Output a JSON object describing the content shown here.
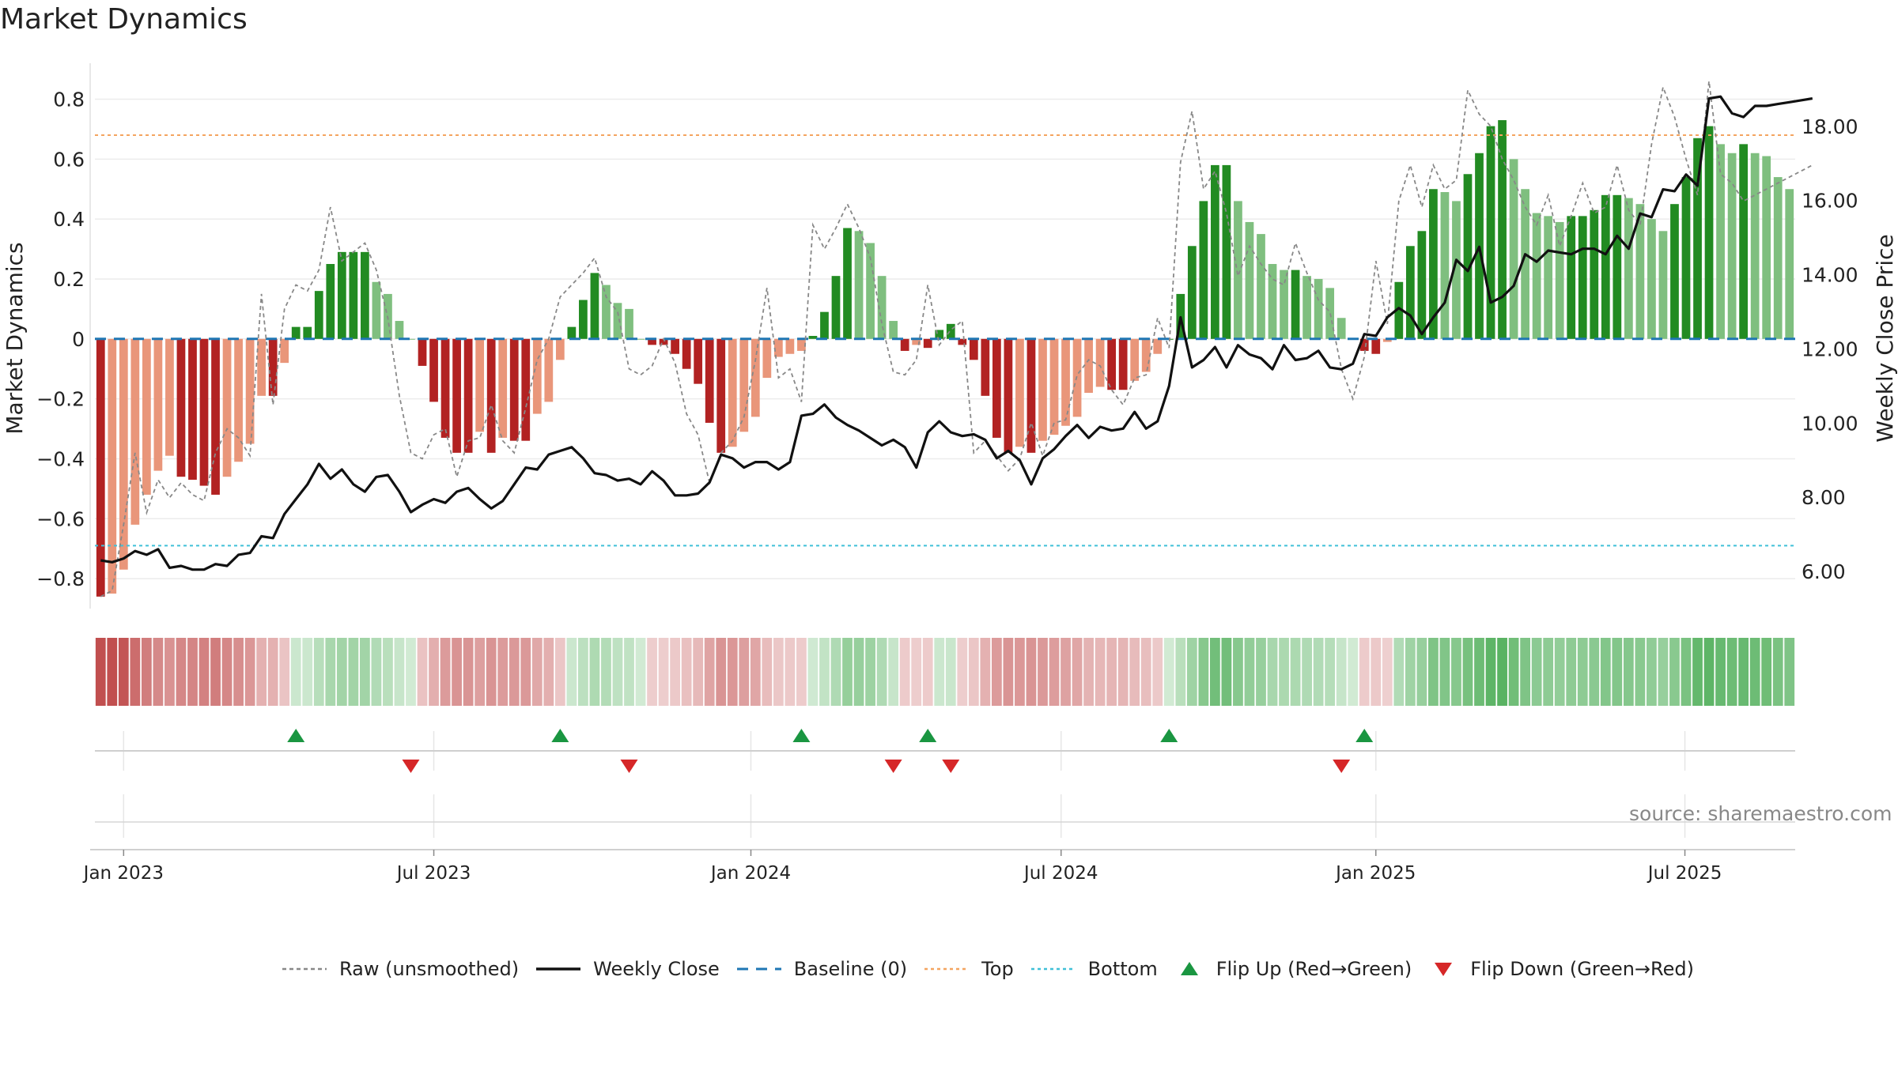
{
  "title": "Market Dynamics",
  "source": "source: sharemaestro.com",
  "legend": {
    "raw": "Raw (unsmoothed)",
    "close": "Weekly Close",
    "baseline": "Baseline (0)",
    "top": "Top",
    "bottom": "Bottom",
    "flip_up": "Flip Up (Red→Green)",
    "flip_down": "Flip Down (Green→Red)"
  },
  "colors": {
    "strong_green": "#228B22",
    "light_green": "#7FBF7F",
    "strong_red": "#B22222",
    "light_red": "#E9967A",
    "raw": "#888888",
    "close": "#111111",
    "baseline": "#1f77b4",
    "top": "#F4A460",
    "bottom": "#40C0D8",
    "flip_up": "#1a9641",
    "flip_down": "#d62728"
  },
  "chart_data": {
    "type": "bar",
    "title": "Market Dynamics",
    "y_left": {
      "label": "Market Dynamics",
      "ylim": [
        -0.9,
        0.92
      ],
      "ticks": [
        -0.8,
        -0.6,
        -0.4,
        -0.2,
        0,
        0.2,
        0.4,
        0.6,
        0.8
      ],
      "tick_labels": [
        "−0.8",
        "−0.6",
        "−0.4",
        "−0.2",
        "0",
        "0.2",
        "0.4",
        "0.6",
        "0.8"
      ]
    },
    "y_right": {
      "label": "Weekly Close Price",
      "ylim": [
        5.0,
        19.7
      ],
      "ticks": [
        6,
        8,
        10,
        12,
        14,
        16,
        18
      ],
      "tick_labels": [
        "6.00",
        "8.00",
        "10.00",
        "12.00",
        "14.00",
        "16.00",
        "18.00"
      ]
    },
    "x": {
      "start": "2022-12-19",
      "week_count": 150,
      "tick_labels": [
        "Jan 2023",
        "Jul 2023",
        "Jan 2024",
        "Jul 2024",
        "Jan 2025",
        "Jul 2025"
      ],
      "tick_weeks": [
        2,
        29,
        56.6,
        83.6,
        111,
        137.9
      ]
    },
    "top_level": 0.68,
    "bottom_level": -0.69,
    "baseline": 0,
    "series": [
      {
        "name": "Market Dynamics",
        "values": [
          -0.86,
          -0.85,
          -0.77,
          -0.62,
          -0.52,
          -0.44,
          -0.39,
          -0.46,
          -0.47,
          -0.49,
          -0.52,
          -0.46,
          -0.41,
          -0.35,
          -0.19,
          -0.19,
          -0.08,
          0.04,
          0.04,
          0.16,
          0.25,
          0.29,
          0.29,
          0.29,
          0.19,
          0.15,
          0.06,
          0.0,
          -0.09,
          -0.21,
          -0.33,
          -0.38,
          -0.38,
          -0.31,
          -0.38,
          -0.33,
          -0.34,
          -0.34,
          -0.25,
          -0.21,
          -0.07,
          0.04,
          0.13,
          0.22,
          0.18,
          0.12,
          0.1,
          0.0,
          -0.02,
          -0.02,
          -0.05,
          -0.1,
          -0.15,
          -0.28,
          -0.38,
          -0.36,
          -0.31,
          -0.26,
          -0.13,
          -0.06,
          -0.05,
          -0.04,
          0.01,
          0.09,
          0.21,
          0.37,
          0.36,
          0.32,
          0.21,
          0.06,
          -0.04,
          -0.02,
          -0.03,
          0.03,
          0.05,
          -0.02,
          -0.07,
          -0.19,
          -0.33,
          -0.38,
          -0.36,
          -0.38,
          -0.34,
          -0.32,
          -0.29,
          -0.26,
          -0.18,
          -0.16,
          -0.17,
          -0.17,
          -0.14,
          -0.11,
          -0.05,
          0.0,
          0.15,
          0.31,
          0.46,
          0.58,
          0.58,
          0.46,
          0.39,
          0.35,
          0.25,
          0.23,
          0.23,
          0.21,
          0.2,
          0.17,
          0.07,
          0.0,
          -0.04,
          -0.05,
          -0.01,
          0.19,
          0.31,
          0.36,
          0.5,
          0.49,
          0.46,
          0.55,
          0.62,
          0.71,
          0.73,
          0.6,
          0.5,
          0.42,
          0.41,
          0.39,
          0.41,
          0.41,
          0.43,
          0.48,
          0.48,
          0.47,
          0.45,
          0.4,
          0.36,
          0.45,
          0.54,
          0.67,
          0.71,
          0.65,
          0.62,
          0.65,
          0.62,
          0.61,
          0.54,
          0.5
        ]
      },
      {
        "name": "Raw (unsmoothed)",
        "values": [
          -0.86,
          -0.84,
          -0.62,
          -0.38,
          -0.58,
          -0.47,
          -0.53,
          -0.48,
          -0.52,
          -0.54,
          -0.38,
          -0.3,
          -0.33,
          -0.39,
          0.15,
          -0.22,
          0.1,
          0.18,
          0.16,
          0.23,
          0.44,
          0.26,
          0.29,
          0.32,
          0.23,
          0.07,
          -0.19,
          -0.38,
          -0.4,
          -0.32,
          -0.3,
          -0.46,
          -0.34,
          -0.33,
          -0.22,
          -0.34,
          -0.38,
          -0.23,
          -0.07,
          0.0,
          0.14,
          0.18,
          0.22,
          0.27,
          0.14,
          0.09,
          -0.1,
          -0.12,
          -0.09,
          0.0,
          -0.08,
          -0.25,
          -0.32,
          -0.48,
          -0.38,
          -0.34,
          -0.26,
          -0.07,
          0.17,
          -0.13,
          -0.1,
          -0.21,
          0.38,
          0.3,
          0.37,
          0.45,
          0.37,
          0.27,
          0.05,
          -0.11,
          -0.12,
          -0.07,
          0.18,
          -0.02,
          0.03,
          0.06,
          -0.38,
          -0.34,
          -0.39,
          -0.44,
          -0.4,
          -0.28,
          -0.39,
          -0.28,
          -0.27,
          -0.12,
          -0.07,
          -0.09,
          -0.17,
          -0.22,
          -0.13,
          -0.12,
          0.07,
          -0.03,
          0.59,
          0.76,
          0.5,
          0.56,
          0.42,
          0.21,
          0.31,
          0.25,
          0.2,
          0.18,
          0.32,
          0.22,
          0.13,
          0.09,
          -0.1,
          -0.2,
          -0.06,
          0.26,
          0.05,
          0.46,
          0.58,
          0.44,
          0.58,
          0.5,
          0.53,
          0.83,
          0.75,
          0.71,
          0.6,
          0.53,
          0.44,
          0.38,
          0.48,
          0.31,
          0.41,
          0.52,
          0.42,
          0.44,
          0.58,
          0.43,
          0.38,
          0.65,
          0.84,
          0.74,
          0.6,
          0.48,
          0.86,
          0.55,
          0.52,
          0.46,
          0.48,
          0.5,
          0.52,
          0.54,
          0.56,
          0.58
        ]
      },
      {
        "name": "Weekly Close",
        "values": [
          6.3,
          6.25,
          6.35,
          6.55,
          6.45,
          6.6,
          6.1,
          6.15,
          6.05,
          6.05,
          6.2,
          6.15,
          6.45,
          6.5,
          6.95,
          6.9,
          7.55,
          7.95,
          8.35,
          8.9,
          8.5,
          8.75,
          8.35,
          8.15,
          8.55,
          8.6,
          8.15,
          7.6,
          7.8,
          7.95,
          7.85,
          8.15,
          8.25,
          7.95,
          7.7,
          7.9,
          8.35,
          8.8,
          8.75,
          9.15,
          9.25,
          9.35,
          9.05,
          8.65,
          8.6,
          8.45,
          8.5,
          8.35,
          8.7,
          8.45,
          8.05,
          8.05,
          8.1,
          8.4,
          9.15,
          9.05,
          8.8,
          8.95,
          8.95,
          8.75,
          8.95,
          10.2,
          10.25,
          10.5,
          10.15,
          9.95,
          9.8,
          9.6,
          9.4,
          9.55,
          9.35,
          8.8,
          9.75,
          10.05,
          9.75,
          9.65,
          9.7,
          9.55,
          9.05,
          9.25,
          9.0,
          8.35,
          9.05,
          9.3,
          9.65,
          9.95,
          9.6,
          9.9,
          9.8,
          9.85,
          10.3,
          9.85,
          10.05,
          11.0,
          12.85,
          11.5,
          11.7,
          12.05,
          11.5,
          12.1,
          11.85,
          11.75,
          11.45,
          12.1,
          11.7,
          11.75,
          11.95,
          11.5,
          11.45,
          11.6,
          12.4,
          12.35,
          12.85,
          13.1,
          12.9,
          12.4,
          12.85,
          13.25,
          14.4,
          14.1,
          14.75,
          13.25,
          13.4,
          13.7,
          14.55,
          14.35,
          14.65,
          14.6,
          14.55,
          14.7,
          14.7,
          14.55,
          15.05,
          14.7,
          15.65,
          15.55,
          16.3,
          16.25,
          16.7,
          16.4,
          18.75,
          18.8,
          18.35,
          18.25,
          18.55,
          18.55,
          18.6,
          18.65,
          18.7,
          18.75
        ]
      }
    ],
    "regime_strip": "color-coded band of Market Dynamics per week (green positive, red negative, intensity by magnitude)",
    "flip_up_weeks": [
      17,
      40,
      61,
      72,
      93,
      110
    ],
    "flip_down_weeks": [
      27,
      46,
      69,
      74,
      108
    ]
  }
}
